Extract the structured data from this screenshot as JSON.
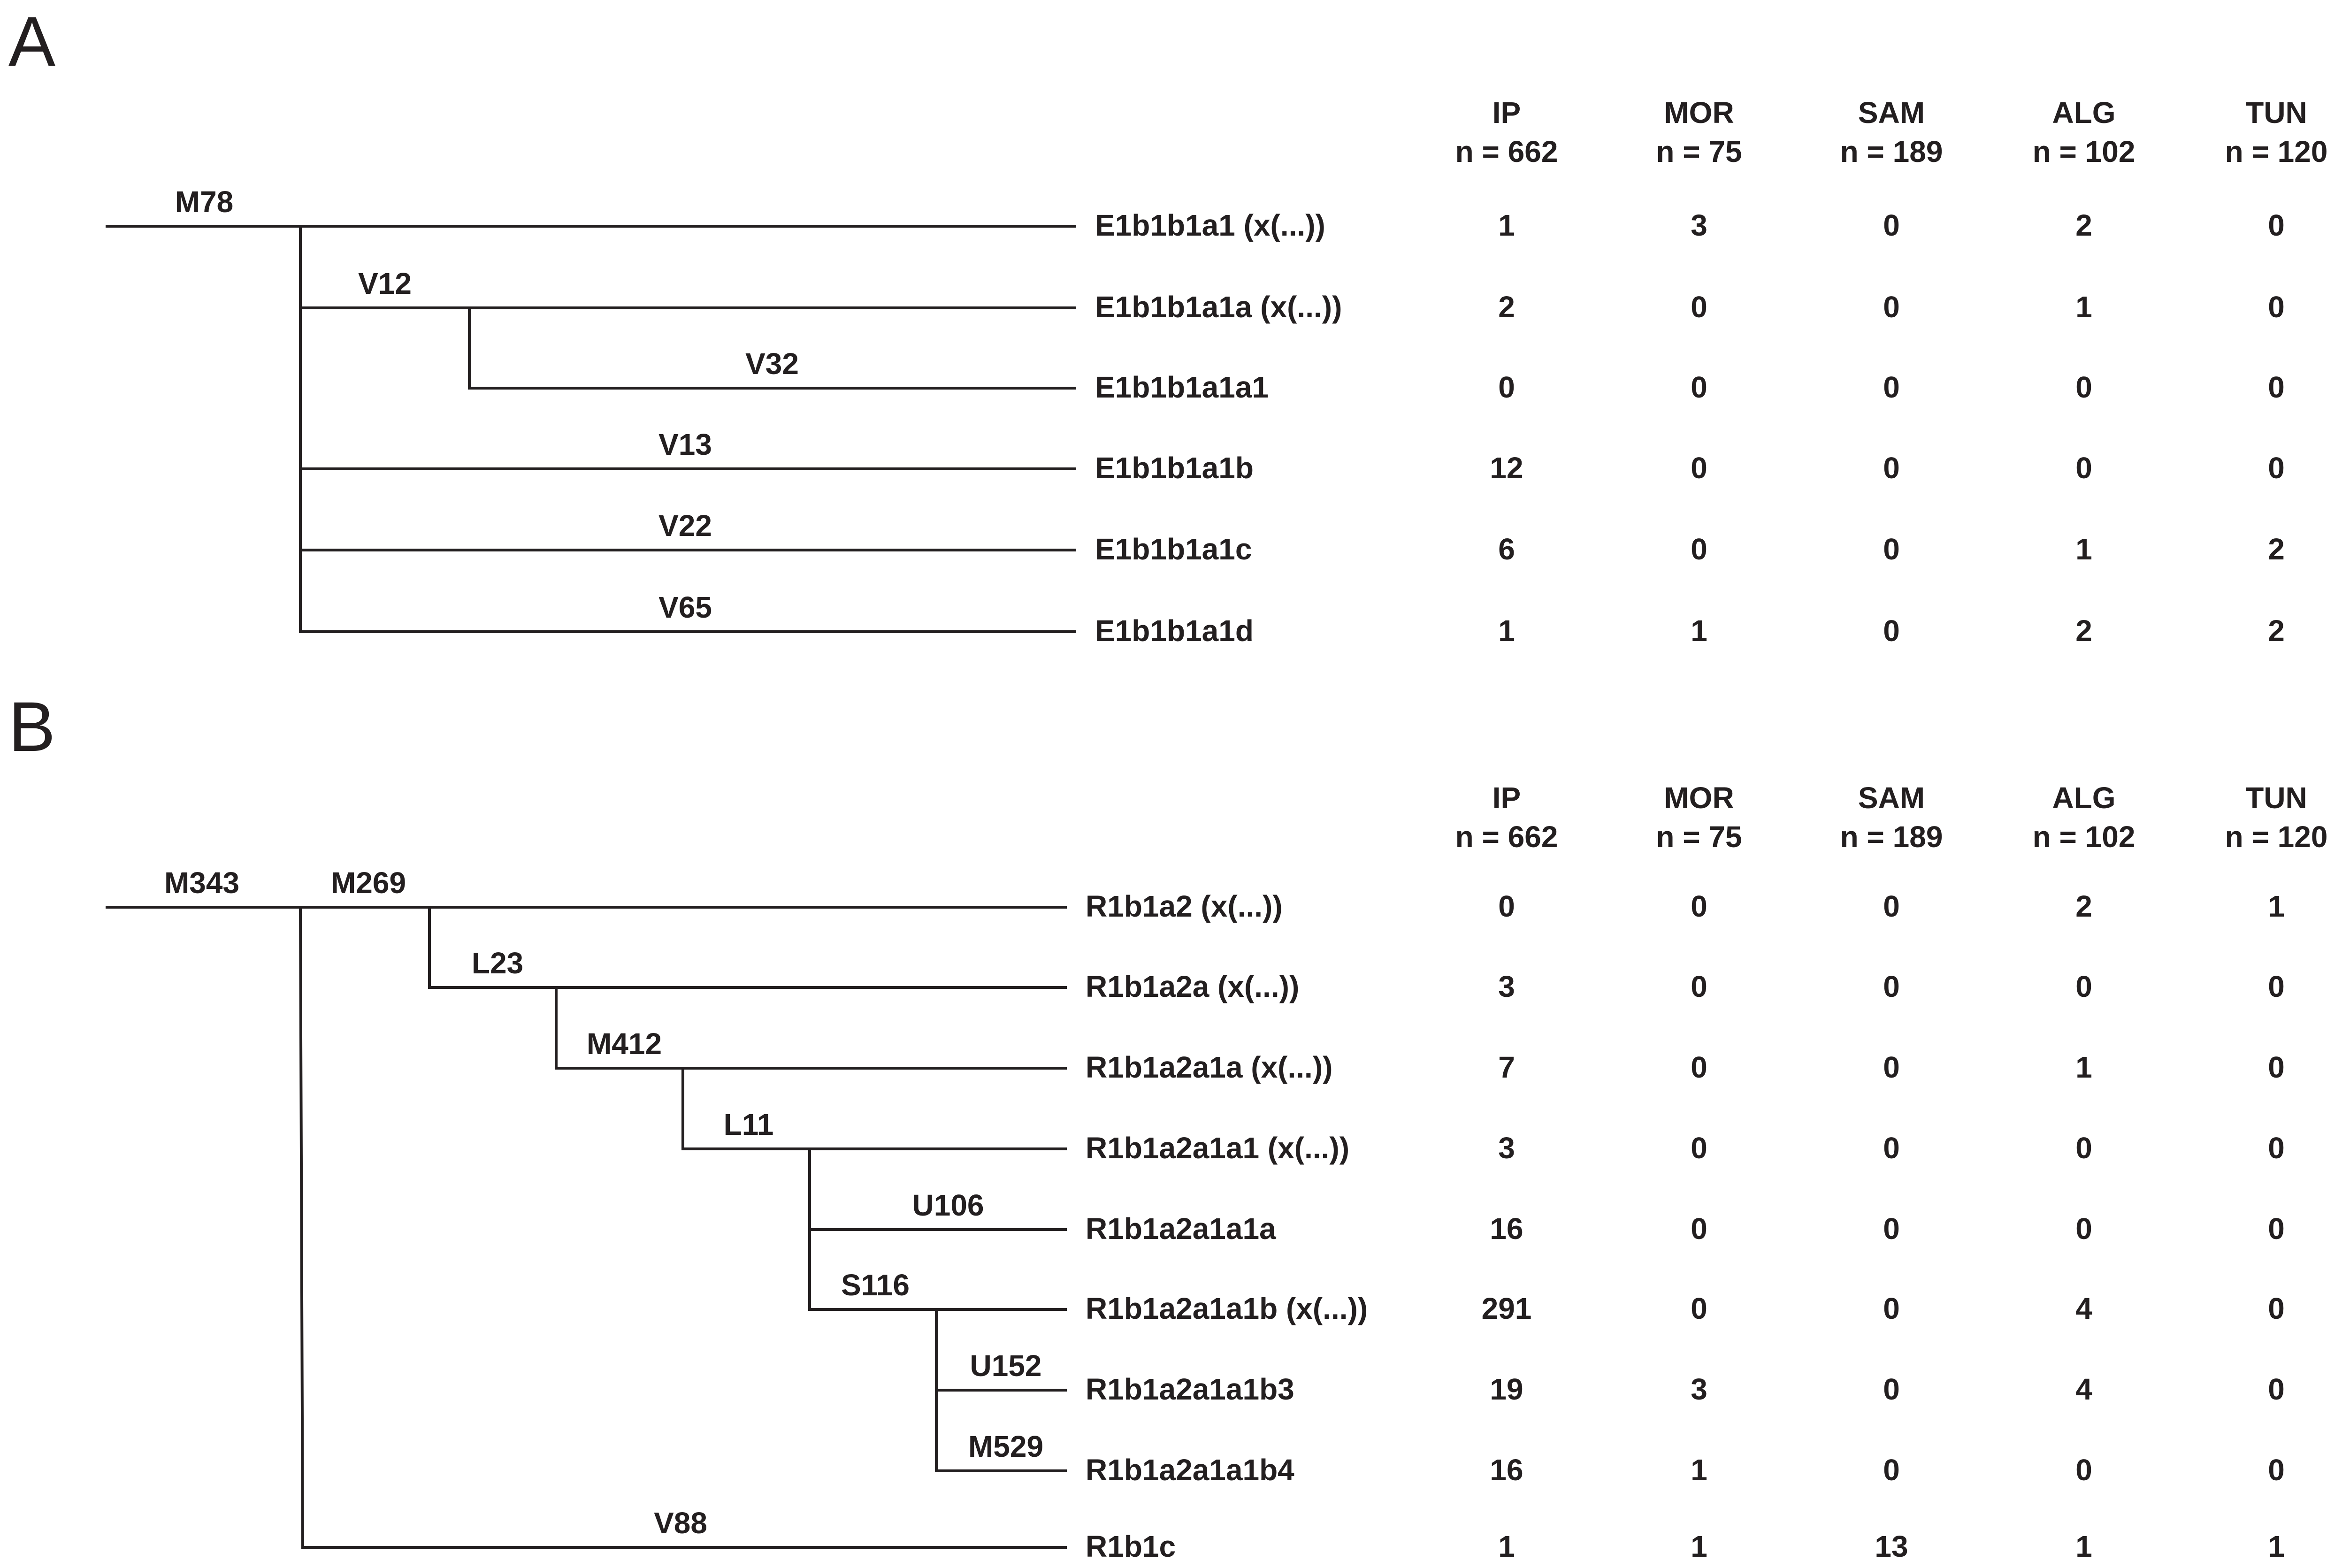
{
  "columns": [
    {
      "pop": "IP",
      "n": "n = 662"
    },
    {
      "pop": "MOR",
      "n": "n = 75"
    },
    {
      "pop": "SAM",
      "n": "n = 189"
    },
    {
      "pop": "ALG",
      "n": "n = 102"
    },
    {
      "pop": "TUN",
      "n": "n = 120"
    }
  ],
  "panels": [
    {
      "label": "A",
      "markers": [
        "M78",
        "V12",
        "V32",
        "V13",
        "V22",
        "V65"
      ],
      "rows": [
        {
          "haplogroup": "E1b1b1a1 (x(...))",
          "values": [
            "1",
            "3",
            "0",
            "2",
            "0"
          ]
        },
        {
          "haplogroup": "E1b1b1a1a (x(...))",
          "values": [
            "2",
            "0",
            "0",
            "1",
            "0"
          ]
        },
        {
          "haplogroup": "E1b1b1a1a1",
          "values": [
            "0",
            "0",
            "0",
            "0",
            "0"
          ]
        },
        {
          "haplogroup": "E1b1b1a1b",
          "values": [
            "12",
            "0",
            "0",
            "0",
            "0"
          ]
        },
        {
          "haplogroup": "E1b1b1a1c",
          "values": [
            "6",
            "0",
            "0",
            "1",
            "2"
          ]
        },
        {
          "haplogroup": "E1b1b1a1d",
          "values": [
            "1",
            "1",
            "0",
            "2",
            "2"
          ]
        }
      ]
    },
    {
      "label": "B",
      "markers": [
        "M343",
        "M269",
        "L23",
        "M412",
        "L11",
        "U106",
        "S116",
        "U152",
        "M529",
        "V88"
      ],
      "rows": [
        {
          "haplogroup": "R1b1a2 (x(...))",
          "values": [
            "0",
            "0",
            "0",
            "2",
            "1"
          ]
        },
        {
          "haplogroup": "R1b1a2a (x(...))",
          "values": [
            "3",
            "0",
            "0",
            "0",
            "0"
          ]
        },
        {
          "haplogroup": "R1b1a2a1a (x(...))",
          "values": [
            "7",
            "0",
            "0",
            "1",
            "0"
          ]
        },
        {
          "haplogroup": "R1b1a2a1a1 (x(...))",
          "values": [
            "3",
            "0",
            "0",
            "0",
            "0"
          ]
        },
        {
          "haplogroup": "R1b1a2a1a1a",
          "values": [
            "16",
            "0",
            "0",
            "0",
            "0"
          ]
        },
        {
          "haplogroup": "R1b1a2a1a1b (x(...))",
          "values": [
            "291",
            "0",
            "0",
            "4",
            "0"
          ]
        },
        {
          "haplogroup": "R1b1a2a1a1b3",
          "values": [
            "19",
            "3",
            "0",
            "4",
            "0"
          ]
        },
        {
          "haplogroup": "R1b1a2a1a1b4",
          "values": [
            "16",
            "1",
            "0",
            "0",
            "0"
          ]
        },
        {
          "haplogroup": "R1b1c",
          "values": [
            "1",
            "1",
            "13",
            "1",
            "1"
          ]
        }
      ]
    }
  ]
}
